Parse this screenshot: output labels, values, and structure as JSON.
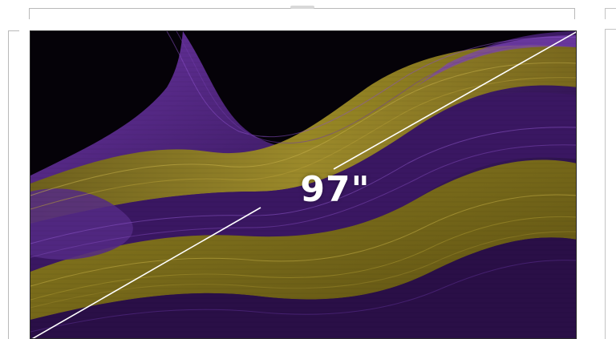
{
  "diagonal_label": "97\"",
  "colors": {
    "background": "#ffffff",
    "bezel": "#000000",
    "wave_purple": "#5a2a8c",
    "wave_purple_dark": "#2b1247",
    "wave_olive": "#8a7a1c",
    "wave_gold": "#a8962a",
    "diagonal_line": "#ffffff",
    "bracket_line": "#b9b9b9"
  }
}
